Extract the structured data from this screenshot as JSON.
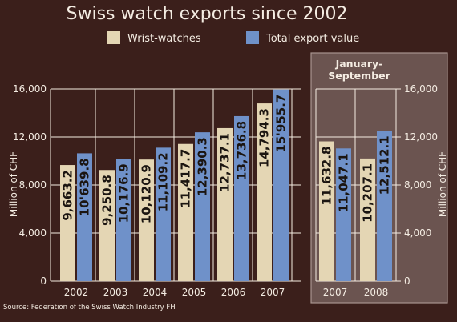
{
  "chart_data": {
    "type": "bar",
    "title": "Swiss watch exports since 2002",
    "ylabel": "Million of CHF",
    "ylim": [
      0,
      16000
    ],
    "yticks": [
      "0",
      "4,000",
      "8,000",
      "12,000",
      "16,000"
    ],
    "categories": [
      "2002",
      "2003",
      "2004",
      "2005",
      "2006",
      "2007",
      "2007",
      "2008"
    ],
    "series": [
      {
        "name": "Wrist-watches",
        "values": [
          9663.2,
          9250.8,
          10120.9,
          11417.7,
          12737.1,
          14794.3,
          11632.8,
          10207.1
        ],
        "labels": [
          "9,663.2",
          "9,250.8",
          "10,120.9",
          "11,417.7",
          "12,737.1",
          "14,794.3",
          "11,632.8",
          "10,207.1"
        ],
        "color": "#e4d6b4"
      },
      {
        "name": "Total export value",
        "values": [
          10639.8,
          10176.9,
          11109.2,
          12390.3,
          13736.8,
          15955.7,
          11047.1,
          12512.1
        ],
        "labels": [
          "10'639.8",
          "10,176.9",
          "11,109.2",
          "12,390.3",
          "13,736.8",
          "15'955.7",
          "11,047.1",
          "12,512.1"
        ],
        "color": "#6f91c9"
      }
    ],
    "panel_label": [
      "January-",
      "September"
    ],
    "source": "Source: Federation of the Swiss Watch Industry FH",
    "colors": {
      "background": "#3b1f1b",
      "panel": "#6b5450",
      "text": "#f4ece2"
    }
  }
}
